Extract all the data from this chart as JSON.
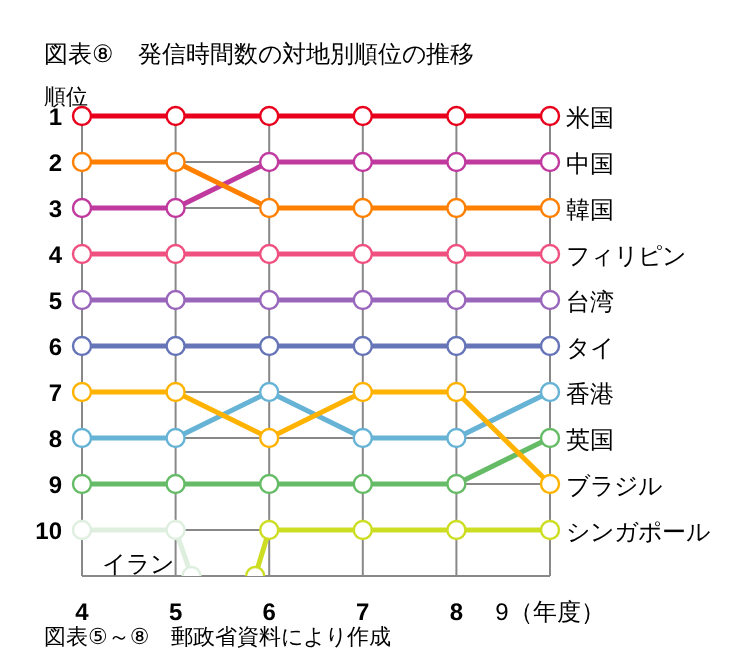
{
  "chart_data": {
    "type": "line",
    "title": "図表⑧　発信時間数の対地別順位の推移",
    "ylabel": "順位",
    "annotations": [
      "図表⑤～⑧　郵政省資料により作成"
    ],
    "x": [
      4,
      5,
      6,
      7,
      8,
      9
    ],
    "xlim": [
      4,
      9
    ],
    "xticks": [
      4,
      5,
      6,
      7,
      8,
      {
        "value": 9,
        "label": "9（年度）"
      }
    ],
    "ylim": [
      11,
      1
    ],
    "yticks": [
      1,
      2,
      3,
      4,
      5,
      6,
      7,
      8,
      9,
      10
    ],
    "grid": true,
    "marker": "circle",
    "line_style": "solid",
    "series": [
      {
        "name": "米国",
        "color": "#e8001c",
        "values": [
          1,
          1,
          1,
          1,
          1,
          1
        ]
      },
      {
        "name": "中国",
        "color": "#c0399f",
        "values": [
          3,
          3,
          2,
          2,
          2,
          2
        ]
      },
      {
        "name": "韓国",
        "color": "#ff8000",
        "values": [
          2,
          2,
          3,
          3,
          3,
          3
        ]
      },
      {
        "name": "フィリピン",
        "color": "#f0507f",
        "values": [
          4,
          4,
          4,
          4,
          4,
          4
        ]
      },
      {
        "name": "台湾",
        "color": "#9966bb",
        "values": [
          5,
          5,
          5,
          5,
          5,
          5
        ]
      },
      {
        "name": "タイ",
        "color": "#6674b8",
        "values": [
          6,
          6,
          6,
          6,
          6,
          6
        ]
      },
      {
        "name": "香港",
        "color": "#66b3d6",
        "values": [
          8,
          8,
          7,
          8,
          8,
          7
        ]
      },
      {
        "name": "英国",
        "color": "#66bb66",
        "values": [
          9,
          9,
          9,
          9,
          9,
          8
        ]
      },
      {
        "name": "ブラジル",
        "color": "#ffb300",
        "values": [
          7,
          7,
          8,
          7,
          7,
          9
        ]
      },
      {
        "name": "シンガポール",
        "color": "#ccdd22",
        "x": [
          5.85,
          6,
          7,
          8,
          9
        ],
        "values": [
          11,
          10,
          10,
          10,
          10
        ]
      },
      {
        "name": "イラン",
        "color": "#dfefdf",
        "x": [
          4,
          5,
          5.17
        ],
        "values": [
          10,
          10,
          11
        ]
      }
    ]
  }
}
